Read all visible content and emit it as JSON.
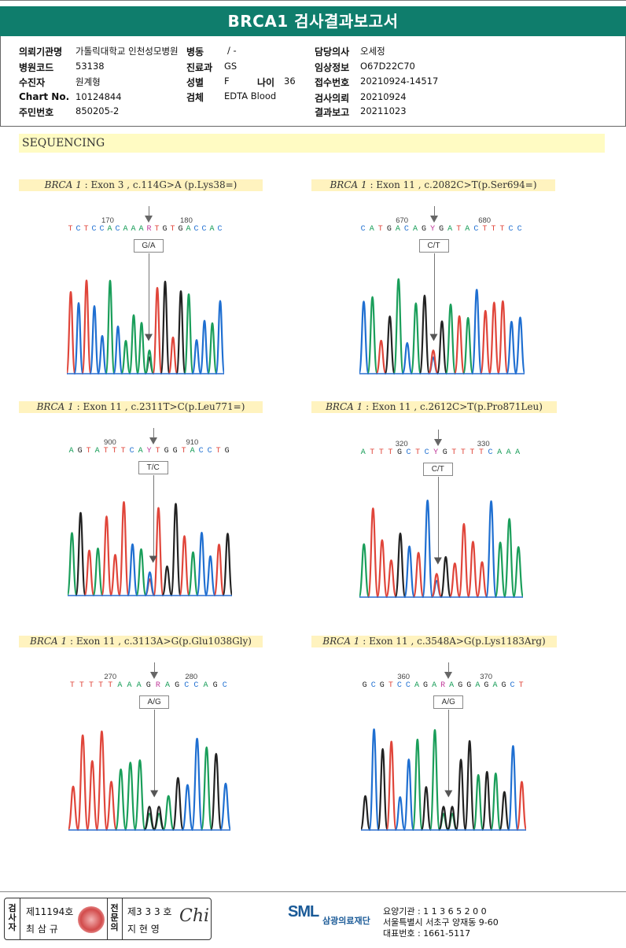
{
  "title": "BRCA1 검사결과보고서",
  "patient": {
    "left": [
      {
        "label": "의뢰기관명",
        "value": "가톨릭대학교 인천성모병원"
      },
      {
        "label": "병원코드",
        "value": "53138"
      },
      {
        "label": "수진자",
        "value": "원계형"
      },
      {
        "label": "Chart No.",
        "value": "10124844"
      },
      {
        "label": "주민번호",
        "value": "850205-2"
      }
    ],
    "middle": [
      {
        "label": "병동",
        "value": "/ -"
      },
      {
        "label": "진료과",
        "value": "GS"
      },
      {
        "label": "성별",
        "value": "F"
      },
      {
        "label": "검체",
        "value": "EDTA Blood"
      }
    ],
    "age": {
      "label": "나이",
      "value": "36"
    },
    "right": [
      {
        "label": "담당의사",
        "value": "오세정"
      },
      {
        "label": "임상정보",
        "value": "O67D22C70"
      },
      {
        "label": "접수번호",
        "value": "20210924-14517"
      },
      {
        "label": "검사의뢰",
        "value": "20210924"
      },
      {
        "label": "결과보고",
        "value": "20211023"
      }
    ]
  },
  "section": "SEQUENCING",
  "panels": [
    {
      "gene": "BRCA 1",
      "desc": ": Exon 3 , c.114G>A (p.Lys38=)",
      "tick1": "170",
      "tick2": "180",
      "seq": "TCTCCACAAARTGTGACCAC",
      "zyg": "G/A"
    },
    {
      "gene": "BRCA 1",
      "desc": ": Exon 11 , c.2082C>T(p.Ser694=)",
      "tick1": "670",
      "tick2": "680",
      "seq": "CATGACAGYGATACTTTCC",
      "zyg": "C/T"
    },
    {
      "gene": "BRCA 1",
      "desc": ": Exon 11 , c.2311T>C(p.Leu771=)",
      "tick1": "900",
      "tick2": "910",
      "seq": "AGTATTTCAYTGGTACCTG",
      "zyg": "T/C"
    },
    {
      "gene": "BRCA 1",
      "desc": ": Exon 11 , c.2612C>T(p.Pro871Leu)",
      "tick1": "320",
      "tick2": "330",
      "seq": "ATTTGCTCYGTTTTCAAA",
      "zyg": "C/T"
    },
    {
      "gene": "BRCA 1",
      "desc": ": Exon 11 , c.3113A>G(p.Glu1038Gly)",
      "tick1": "270",
      "tick2": "280",
      "seq": "TTTTTAAAGRAGCCAGC",
      "zyg": "A/G"
    },
    {
      "gene": "BRCA 1",
      "desc": ": Exon 11 , c.3548A>G(p.Lys1183Arg)",
      "tick1": "360",
      "tick2": "370",
      "seq": "GCGTCCAGARAGGAGAGCT",
      "zyg": "A/G"
    }
  ],
  "footer": {
    "inspector_label": [
      "검",
      "사",
      "자"
    ],
    "inspector_no": "제11194호",
    "inspector_name": "최 삼 규",
    "specialist_label": [
      "전",
      "문",
      "의"
    ],
    "specialist_no": "제3 3 3 호",
    "specialist_name": "지 현 영",
    "signature": "Chi",
    "logo_mark": "SML",
    "logo_name": "삼광의료재단",
    "inst_code": "요양기관 : 1 1 3 6 5 2 0 0",
    "address": "서울특별시 서초구 양재동 9-60",
    "phone": "대표번호 : 1661-5117"
  },
  "colors": {
    "A": "#1a9e5a",
    "C": "#1f6fd1",
    "G": "#222222",
    "T": "#e0453a",
    "N": "#c03a9a",
    "brand": "#0f7d6c"
  }
}
